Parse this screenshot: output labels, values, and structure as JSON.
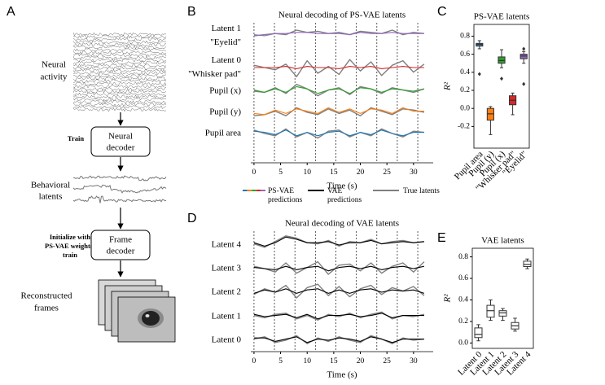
{
  "panel_labels": [
    "A",
    "B",
    "C",
    "D",
    "E"
  ],
  "diagram": {
    "neural_activity": [
      "Neural",
      "activity"
    ],
    "train": "Train",
    "neural_decoder": [
      "Neural",
      "decoder"
    ],
    "behavioral_latents": [
      "Behavioral",
      "latents"
    ],
    "initialize": [
      "Initialize with",
      "PS-VAE weights;",
      "train"
    ],
    "frame_decoder": [
      "Frame",
      "decoder"
    ],
    "reconstructed_frames": [
      "Reconstructed",
      "frames"
    ]
  },
  "chart_data": [
    {
      "type": "stacked_traces",
      "title": "Neural decoding of PS-VAE latents",
      "x_label": "Time (s)",
      "x": [
        0,
        2,
        4,
        6,
        8,
        10,
        12,
        14,
        16,
        18,
        20,
        22,
        24,
        26,
        28,
        30,
        32
      ],
      "xlim": [
        -0.6,
        33.7
      ],
      "xticks": [
        0,
        5,
        10,
        15,
        20,
        25,
        30
      ],
      "trial_boundaries": [
        0,
        3.85,
        7.7,
        11.55,
        15.4,
        19.25,
        23.1,
        26.95,
        30.8
      ],
      "true_color": "#7f7f7f",
      "rows": [
        {
          "label": [
            "Latent 1",
            "\"Eyelid\""
          ],
          "color": "#9467bd",
          "truth": [
            0,
            0.1,
            0.2,
            0.1,
            0.5,
            0.3,
            0.4,
            0.2,
            0.3,
            0.1,
            0.4,
            0.3,
            0.2,
            0.5,
            0.1,
            0.3,
            0.2
          ],
          "prediction": [
            0.1,
            0,
            0.2,
            0.2,
            0.3,
            0.3,
            0.2,
            0.2,
            0.2,
            0.1,
            0.3,
            0.2,
            0.2,
            0.3,
            0.2,
            0.2,
            0.2
          ]
        },
        {
          "label": [
            "Latent 0",
            "\"Whisker pad\""
          ],
          "color": "#d62728",
          "truth": [
            0.2,
            0,
            -0.2,
            0.3,
            -0.8,
            0.6,
            -0.5,
            0.1,
            -0.6,
            0.7,
            -0.3,
            0.5,
            -0.7,
            0.2,
            0.6,
            -0.4,
            0.3
          ],
          "prediction": [
            0,
            0,
            0,
            0.1,
            -0.1,
            0.1,
            0,
            0,
            -0.1,
            0.1,
            0,
            0.1,
            -0.1,
            0,
            0.1,
            0,
            0
          ]
        },
        {
          "label": [
            "Pupil (x)"
          ],
          "color": "#2ca02c",
          "truth": [
            0,
            -0.1,
            0.3,
            -0.2,
            0.6,
            0.2,
            -0.4,
            0.1,
            0.3,
            -0.3,
            0.4,
            0.2,
            -0.2,
            0.3,
            0.1,
            -0.1,
            0.2
          ],
          "prediction": [
            0.1,
            -0.1,
            0.2,
            -0.1,
            0.4,
            0.2,
            -0.2,
            0.1,
            0.2,
            -0.2,
            0.3,
            0.2,
            -0.1,
            0.2,
            0.1,
            0,
            0.2
          ]
        },
        {
          "label": [
            "Pupil (y)"
          ],
          "color": "#ff7f0e",
          "truth": [
            -0.3,
            -0.2,
            0.1,
            -0.3,
            0.4,
            0,
            -0.2,
            0.3,
            -0.1,
            0.2,
            -0.3,
            0.4,
            0.1,
            -0.2,
            0.3,
            0.2,
            0
          ],
          "prediction": [
            -0.1,
            -0.2,
            0.2,
            -0.1,
            0.3,
            0.1,
            -0.1,
            0.4,
            0,
            0.3,
            -0.1,
            0.3,
            0.2,
            -0.1,
            0.4,
            0.1,
            0.1
          ]
        },
        {
          "label": [
            "Pupil area"
          ],
          "color": "#1f77b4",
          "truth": [
            0.3,
            0,
            -0.2,
            0.4,
            -0.3,
            0.1,
            -0.4,
            0.2,
            0.3,
            -0.3,
            0.1,
            -0.2,
            0.4,
            0,
            -0.3,
            0.2,
            0.1
          ],
          "prediction": [
            0.2,
            0.1,
            -0.1,
            0.3,
            -0.2,
            0.1,
            -0.2,
            0.1,
            0.2,
            -0.2,
            0.1,
            -0.1,
            0.3,
            0,
            -0.2,
            0.1,
            0.1
          ]
        }
      ],
      "legend": [
        {
          "label": [
            "PS-VAE",
            "predictions"
          ],
          "colors": [
            "#1f77b4",
            "#ff7f0e",
            "#2ca02c",
            "#d62728",
            "#9467bd"
          ]
        },
        {
          "label": [
            "VAE",
            "predictions"
          ],
          "color": "#000000"
        },
        {
          "label": [
            "True latents"
          ],
          "color": "#7f7f7f"
        }
      ]
    },
    {
      "type": "box",
      "title": "PS-VAE latents",
      "y_label": "R²",
      "categories": [
        "Pupil area",
        "Pupil (y)",
        "Pupil (x)",
        "\"Whisker pad\"",
        "\"Eyelid\""
      ],
      "colors": [
        "#1f77b4",
        "#ff7f0e",
        "#2ca02c",
        "#d62728",
        "#9467bd"
      ],
      "boxes": [
        {
          "whislo": 0.66,
          "q1": 0.69,
          "med": 0.71,
          "q3": 0.72,
          "whishi": 0.75,
          "fliers": [
            0.38
          ]
        },
        {
          "whislo": -0.29,
          "q1": -0.13,
          "med": -0.06,
          "q3": 0.0,
          "whishi": 0.02,
          "fliers": []
        },
        {
          "whislo": 0.45,
          "q1": 0.5,
          "med": 0.53,
          "q3": 0.57,
          "whishi": 0.65,
          "fliers": [
            0.33
          ]
        },
        {
          "whislo": -0.07,
          "q1": 0.04,
          "med": 0.09,
          "q3": 0.14,
          "whishi": 0.17,
          "fliers": []
        },
        {
          "whislo": 0.5,
          "q1": 0.55,
          "med": 0.58,
          "q3": 0.6,
          "whishi": 0.63,
          "fliers": [
            0.66,
            0.27
          ]
        }
      ],
      "ylim": [
        -0.44,
        0.93
      ],
      "yticks": [
        -0.2,
        {
          "value": 0,
          "label": "0.0"
        },
        0.2,
        0.4,
        0.6,
        0.8
      ]
    },
    {
      "type": "stacked_traces",
      "title": "Neural decoding of VAE latents",
      "x_label": "Time (s)",
      "x": [
        0,
        2,
        4,
        6,
        8,
        10,
        12,
        14,
        16,
        18,
        20,
        22,
        24,
        26,
        28,
        30,
        32
      ],
      "xlim": [
        -0.6,
        33.7
      ],
      "xticks": [
        0,
        5,
        10,
        15,
        20,
        25,
        30
      ],
      "trial_boundaries": [
        0,
        3.85,
        7.7,
        11.55,
        15.4,
        19.25,
        23.1,
        26.95,
        30.8
      ],
      "true_color": "#7f7f7f",
      "prediction_color": "#000000",
      "rows": [
        {
          "label": [
            "Latent 4"
          ],
          "truth": [
            0.1,
            -0.2,
            0.3,
            0.8,
            0.6,
            0.2,
            0.1,
            0.4,
            -0.1,
            0.3,
            0.2,
            0.5,
            0.1,
            0.3,
            0.4,
            0.2,
            0.3
          ],
          "prediction": [
            0.2,
            -0.1,
            0.2,
            0.7,
            0.5,
            0.2,
            0.2,
            0.3,
            0,
            0.2,
            0.2,
            0.4,
            0.1,
            0.2,
            0.3,
            0.2,
            0.3
          ]
        },
        {
          "label": [
            "Latent 3"
          ],
          "truth": [
            0.2,
            0,
            -0.3,
            0.5,
            -0.4,
            0.1,
            0.6,
            -0.5,
            0.3,
            0.4,
            -0.2,
            0.5,
            -0.4,
            0.2,
            0.5,
            -0.3,
            0.6
          ],
          "prediction": [
            0.1,
            0,
            -0.1,
            0.2,
            -0.1,
            0.1,
            0.2,
            -0.2,
            0.1,
            0.2,
            0,
            0.2,
            -0.1,
            0.1,
            0.2,
            0,
            0.2
          ]
        },
        {
          "label": [
            "Latent 2"
          ],
          "truth": [
            -0.2,
            0.3,
            0,
            0.6,
            -0.5,
            0.4,
            0.7,
            -0.3,
            0.5,
            -0.4,
            0.3,
            0.6,
            -0.2,
            0.4,
            0.1,
            0.5,
            -0.3
          ],
          "prediction": [
            -0.1,
            0.2,
            0,
            0.3,
            -0.1,
            0.2,
            0.3,
            -0.1,
            0.2,
            -0.1,
            0.2,
            0.3,
            0,
            0.2,
            0.1,
            0.2,
            -0.1
          ]
        },
        {
          "label": [
            "Latent 1"
          ],
          "truth": [
            0.1,
            -0.1,
            0.2,
            0.3,
            -0.2,
            0.1,
            -0.3,
            0.2,
            0,
            0.3,
            -0.1,
            0.2,
            0.4,
            -0.2,
            0.1,
            0,
            0.2
          ],
          "prediction": [
            0.2,
            0,
            0.1,
            0.2,
            -0.1,
            0.2,
            -0.2,
            0.1,
            0.1,
            0.2,
            0,
            0.1,
            0.3,
            -0.1,
            0.1,
            0.1,
            0.1
          ]
        },
        {
          "label": [
            "Latent 0"
          ],
          "truth": [
            0.1,
            0.3,
            -0.2,
            0,
            0.4,
            -0.3,
            0.2,
            -0.1,
            0.3,
            0,
            -0.2,
            0.4,
            0.1,
            -0.3,
            0.2,
            0,
            0.1
          ],
          "prediction": [
            0.2,
            0.2,
            -0.1,
            0.1,
            0.3,
            -0.2,
            0.1,
            0,
            0.2,
            0.1,
            -0.1,
            0.3,
            0.1,
            -0.2,
            0.1,
            0.1,
            0.1
          ]
        }
      ]
    },
    {
      "type": "box",
      "title": "VAE latents",
      "y_label": "R²",
      "categories": [
        "Latent 0",
        "Latent 1",
        "Latent 2",
        "Latent 3",
        "Latent 4"
      ],
      "box_color": "#ffffff",
      "boxes": [
        {
          "whislo": 0.02,
          "q1": 0.05,
          "med": 0.08,
          "q3": 0.14,
          "whishi": 0.17,
          "fliers": []
        },
        {
          "whislo": 0.21,
          "q1": 0.24,
          "med": 0.3,
          "q3": 0.35,
          "whishi": 0.4,
          "fliers": []
        },
        {
          "whislo": 0.21,
          "q1": 0.25,
          "med": 0.28,
          "q3": 0.3,
          "whishi": 0.32,
          "fliers": []
        },
        {
          "whislo": 0.11,
          "q1": 0.13,
          "med": 0.16,
          "q3": 0.19,
          "whishi": 0.23,
          "fliers": []
        },
        {
          "whislo": 0.69,
          "q1": 0.71,
          "med": 0.73,
          "q3": 0.76,
          "whishi": 0.78,
          "fliers": []
        }
      ],
      "ylim": [
        -0.05,
        0.88
      ],
      "yticks": [
        {
          "value": 0,
          "label": "0.0"
        },
        0.2,
        0.4,
        0.6,
        0.8
      ]
    }
  ]
}
